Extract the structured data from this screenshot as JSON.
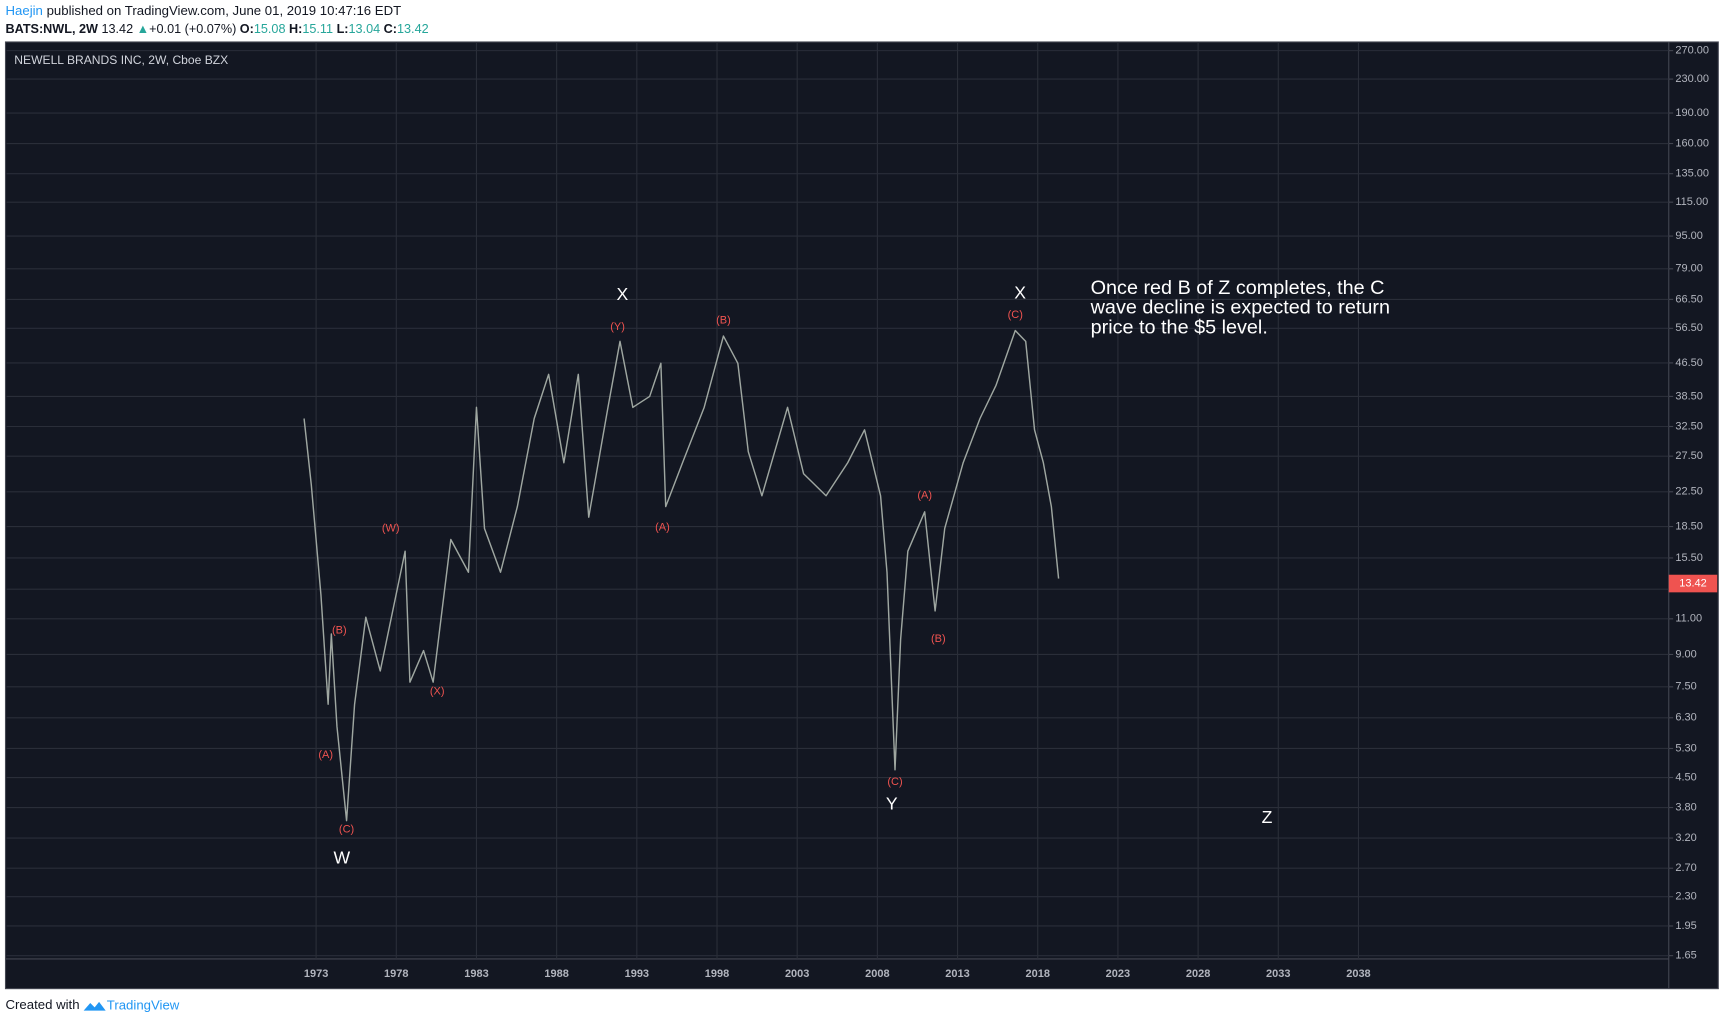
{
  "header": {
    "author": "Haejin",
    "published": "published on TradingView.com, June 01, 2019 10:47:16 EDT",
    "symbol": "BATS:NWL, 2W",
    "last": "13.42",
    "arrow": "▲",
    "change": "+0.01 (+0.07%)",
    "open_label": "O:",
    "open": "15.08",
    "high_label": "H:",
    "high": "15.11",
    "low_label": "L:",
    "low": "13.04",
    "close_label": "C:",
    "close": "13.42"
  },
  "footer": {
    "created": "Created with",
    "brand": "TradingView"
  },
  "chart_data": {
    "type": "line",
    "title": "NEWELL BRANDS INC, 2W, Cboe BZX",
    "log_scale": true,
    "grid": true,
    "color": "#9fa7a1",
    "x": [
      1972.25,
      1972.7,
      1973.3,
      1973.75,
      1973.95,
      1974.3,
      1974.9,
      1975.4,
      1976.1,
      1977.0,
      1978.55,
      1978.85,
      1979.7,
      1980.3,
      1981.4,
      1982.5,
      1983.0,
      1983.5,
      1984.5,
      1985.55,
      1986.6,
      1987.5,
      1988.45,
      1989.35,
      1990.0,
      1991.2,
      1991.95,
      1992.75,
      1993.8,
      1994.5,
      1994.8,
      1995.85,
      1997.2,
      1998.4,
      1999.3,
      1999.95,
      2000.8,
      2002.4,
      2003.4,
      2004.8,
      2006.15,
      2007.2,
      2008.2,
      2008.6,
      2009.1,
      2009.45,
      2009.9,
      2010.95,
      2011.6,
      2012.2,
      2013.35,
      2014.4,
      2015.4,
      2016.6,
      2017.25,
      2017.8,
      2018.35,
      2018.85,
      2019.3
    ],
    "values": [
      34.0,
      23.4,
      12.6,
      6.8,
      10.1,
      6.0,
      3.53,
      6.8,
      11.1,
      8.2,
      16.1,
      7.7,
      9.2,
      7.7,
      17.2,
      14.3,
      36.2,
      18.3,
      14.3,
      20.7,
      34.0,
      43.6,
      26.5,
      43.6,
      19.5,
      36.2,
      52.5,
      36.2,
      38.5,
      46.4,
      20.7,
      26.5,
      36.2,
      54.1,
      46.4,
      28.2,
      22.0,
      36.2,
      24.9,
      22.0,
      26.5,
      31.9,
      22.0,
      14.3,
      4.7,
      9.8,
      16.1,
      20.1,
      11.5,
      18.3,
      26.5,
      34.0,
      41.0,
      55.8,
      52.5,
      31.9,
      26.5,
      20.7,
      13.8
    ],
    "last_price": 13.42,
    "xlim": [
      1953.7,
      2057.35
    ],
    "xticks": [
      1973,
      1978,
      1983,
      1988,
      1993,
      1998,
      2003,
      2008,
      2013,
      2018,
      2023,
      2028,
      2033,
      2038
    ],
    "ylim": [
      1.63,
      280
    ],
    "yticks": [
      {
        "value": 270,
        "label": "270.00"
      },
      {
        "value": 230,
        "label": "230.00"
      },
      {
        "value": 190,
        "label": "190.00"
      },
      {
        "value": 160,
        "label": "160.00"
      },
      {
        "value": 135,
        "label": "135.00"
      },
      {
        "value": 115,
        "label": "115.00"
      },
      {
        "value": 95,
        "label": "95.00"
      },
      {
        "value": 79,
        "label": "79.00"
      },
      {
        "value": 66.5,
        "label": "66.50"
      },
      {
        "value": 56.5,
        "label": "56.50"
      },
      {
        "value": 46.5,
        "label": "46.50"
      },
      {
        "value": 38.5,
        "label": "38.50"
      },
      {
        "value": 32.5,
        "label": "32.50"
      },
      {
        "value": 27.5,
        "label": "27.50"
      },
      {
        "value": 22.5,
        "label": "22.50"
      },
      {
        "value": 18.5,
        "label": "18.50"
      },
      {
        "value": 15.5,
        "label": "15.50"
      },
      {
        "value": 13,
        "label": "13.00"
      },
      {
        "value": 11,
        "label": "11.00"
      },
      {
        "value": 9,
        "label": "9.00"
      },
      {
        "value": 7.5,
        "label": "7.50"
      },
      {
        "value": 6.3,
        "label": "6.30"
      },
      {
        "value": 5.3,
        "label": "5.30"
      },
      {
        "value": 4.5,
        "label": "4.50"
      },
      {
        "value": 3.8,
        "label": "3.80"
      },
      {
        "value": 3.2,
        "label": "3.20"
      },
      {
        "value": 2.7,
        "label": "2.70"
      },
      {
        "value": 2.3,
        "label": "2.30"
      },
      {
        "value": 1.95,
        "label": "1.95"
      },
      {
        "value": 1.65,
        "label": "1.65"
      }
    ],
    "annotations": [
      {
        "text": "W",
        "x": 1974.6,
        "y": 2.85,
        "color": "#ffffff"
      },
      {
        "text": "(C)",
        "x": 1974.9,
        "y": 3.36,
        "color": "#ef5350"
      },
      {
        "text": "(A)",
        "x": 1973.6,
        "y": 5.1,
        "color": "#ef5350"
      },
      {
        "text": "(B)",
        "x": 1974.45,
        "y": 10.3,
        "color": "#ef5350"
      },
      {
        "text": "(W)",
        "x": 1977.65,
        "y": 18.3,
        "color": "#ef5350"
      },
      {
        "text": "(X)",
        "x": 1980.55,
        "y": 7.3,
        "color": "#ef5350"
      },
      {
        "text": "X",
        "x": 1992.1,
        "y": 68.1,
        "color": "#ffffff"
      },
      {
        "text": "(Y)",
        "x": 1991.8,
        "y": 56.9,
        "color": "#ef5350"
      },
      {
        "text": "(A)",
        "x": 1994.6,
        "y": 18.4,
        "color": "#ef5350"
      },
      {
        "text": "(B)",
        "x": 1998.4,
        "y": 59.0,
        "color": "#ef5350"
      },
      {
        "text": "(C)",
        "x": 2009.1,
        "y": 4.39,
        "color": "#ef5350"
      },
      {
        "text": "Y",
        "x": 2008.9,
        "y": 3.86,
        "color": "#ffffff"
      },
      {
        "text": "(A)",
        "x": 2010.95,
        "y": 22.0,
        "color": "#ef5350"
      },
      {
        "text": "(B)",
        "x": 2011.8,
        "y": 9.8,
        "color": "#ef5350"
      },
      {
        "text": "(C)",
        "x": 2016.6,
        "y": 60.9,
        "color": "#ef5350"
      },
      {
        "text": "X",
        "x": 2016.9,
        "y": 68.6,
        "color": "#ffffff"
      },
      {
        "text": "Z",
        "x": 2032.3,
        "y": 3.58,
        "color": "#ffffff"
      }
    ],
    "note": {
      "lines": [
        "Once red B of Z completes, the C",
        "wave decline is expected to return",
        "price to the $5 level."
      ],
      "x": 2021.3,
      "y": 70.7,
      "color": "#ffffff"
    }
  }
}
